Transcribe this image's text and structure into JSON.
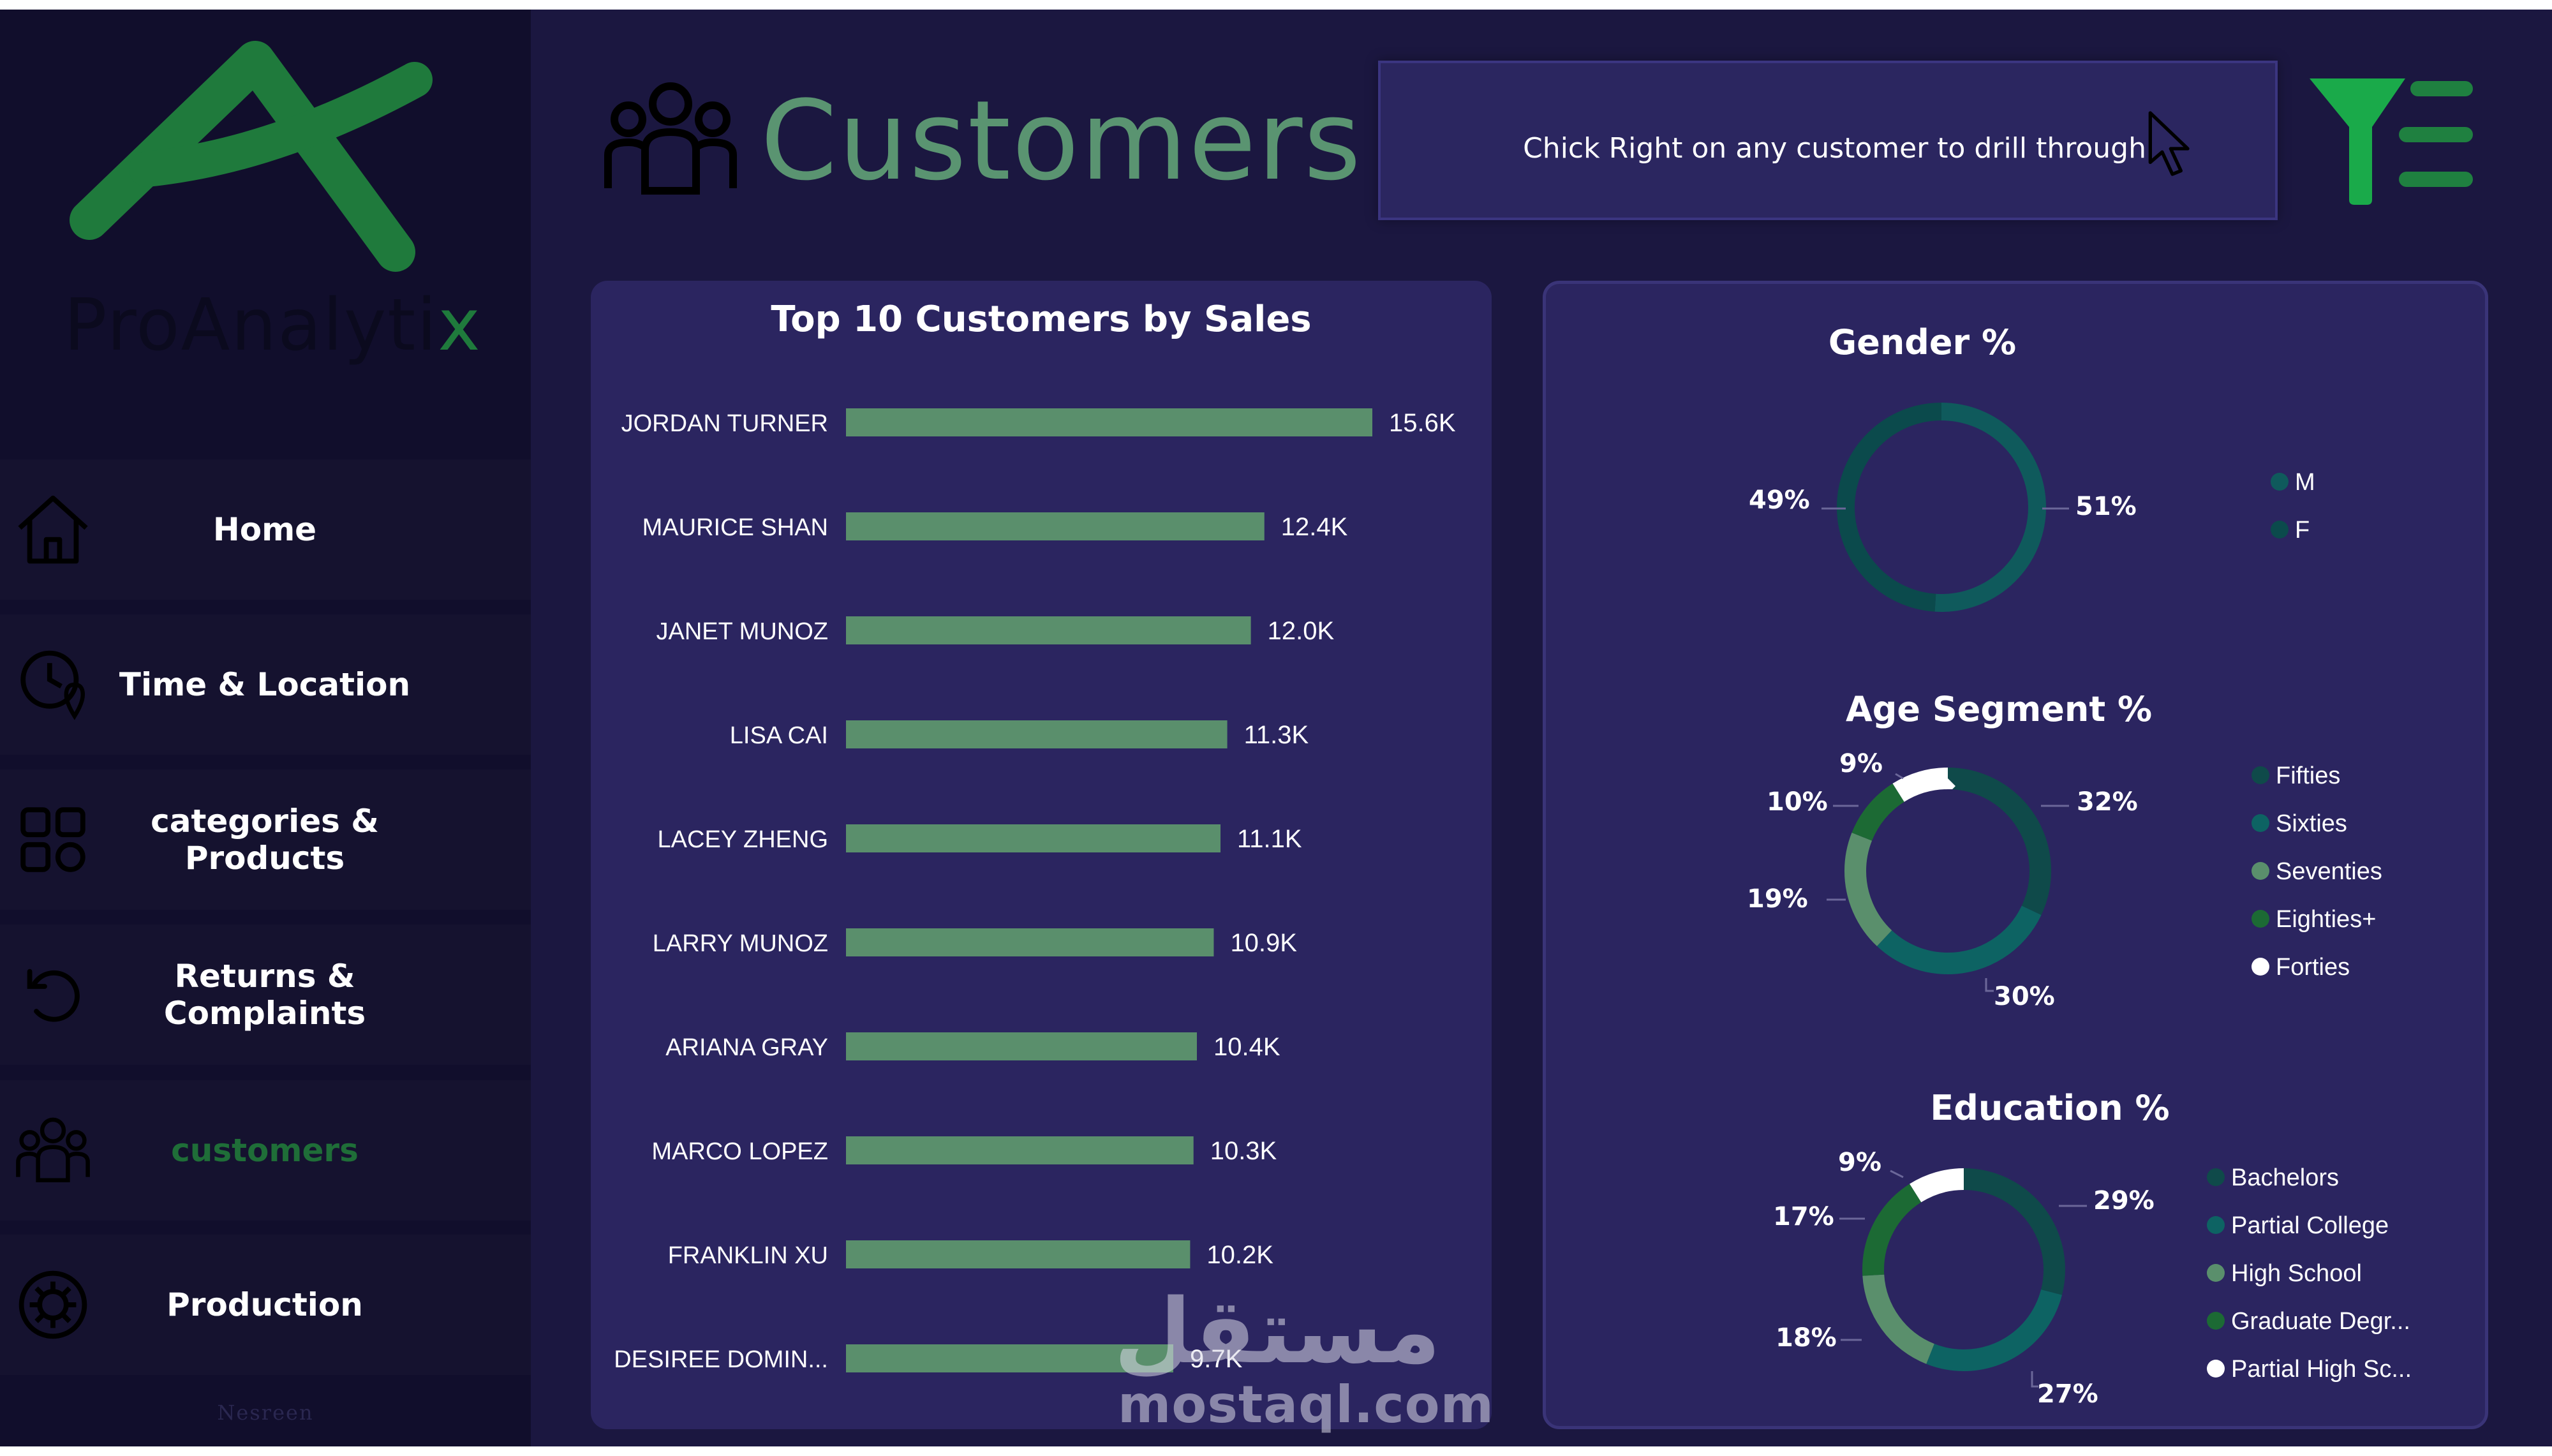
{
  "brand": {
    "logo_text_main": "ProAnalyti",
    "logo_text_accent": "x"
  },
  "sidebar": {
    "items": [
      {
        "label": "Home",
        "icon": "home-icon",
        "active": false
      },
      {
        "label": "Time & Location",
        "icon": "clock-location-icon",
        "active": false
      },
      {
        "label": "categories & Products",
        "icon": "grid-icon",
        "active": false
      },
      {
        "label": "Returns & Complaints",
        "icon": "return-icon",
        "active": false
      },
      {
        "label": "customers",
        "icon": "users-icon",
        "active": true
      },
      {
        "label": "Production",
        "icon": "gear-icon",
        "active": false
      }
    ],
    "footer": "Nesreen"
  },
  "header": {
    "title": "Customers",
    "hint": "Chick Right on any customer to drill through"
  },
  "colors": {
    "accent": "#5a9471",
    "bar": "#5a8f6c",
    "panel": "#2b2560",
    "background": "#1b1740",
    "sidebar": "#110e2c"
  },
  "chart_data": [
    {
      "type": "bar",
      "orientation": "horizontal",
      "title": "Top 10 Customers by Sales",
      "categories": [
        "JORDAN TURNER",
        "MAURICE SHAN",
        "JANET MUNOZ",
        "LISA CAI",
        "LACEY ZHENG",
        "LARRY MUNOZ",
        "ARIANA GRAY",
        "MARCO LOPEZ",
        "FRANKLIN XU",
        "DESIREE DOMIN..."
      ],
      "values": [
        15.6,
        12.4,
        12.0,
        11.3,
        11.1,
        10.9,
        10.4,
        10.3,
        10.2,
        9.7
      ],
      "labels": [
        "15.6K",
        "12.4K",
        "12.0K",
        "11.3K",
        "11.1K",
        "10.9K",
        "10.4K",
        "10.3K",
        "10.2K",
        "9.7K"
      ],
      "unit": "K",
      "color": "#5a8f6c"
    },
    {
      "type": "pie",
      "variant": "donut",
      "title": "Gender %",
      "slices": [
        {
          "name": "M",
          "value": 51,
          "label": "51%",
          "color": "#0f5a5c"
        },
        {
          "name": "F",
          "value": 49,
          "label": "49%",
          "color": "#0b4a4c"
        }
      ],
      "legend_position": "right"
    },
    {
      "type": "pie",
      "variant": "donut",
      "title": "Age Segment %",
      "slices": [
        {
          "name": "Fifties",
          "value": 32,
          "label": "32%",
          "color": "#0f4a4a"
        },
        {
          "name": "Sixties",
          "value": 30,
          "label": "30%",
          "color": "#0d6363"
        },
        {
          "name": "Seventies",
          "value": 19,
          "label": "19%",
          "color": "#5a8f6c"
        },
        {
          "name": "Eighties+",
          "value": 10,
          "label": "10%",
          "color": "#1c6a34"
        },
        {
          "name": "Forties",
          "value": 9,
          "label": "9%",
          "color": "#ffffff"
        }
      ],
      "legend_position": "right"
    },
    {
      "type": "pie",
      "variant": "donut",
      "title": "Education %",
      "slices": [
        {
          "name": "Bachelors",
          "value": 29,
          "label": "29%",
          "color": "#0f4a4a"
        },
        {
          "name": "Partial College",
          "value": 27,
          "label": "27%",
          "color": "#0d6363"
        },
        {
          "name": "High School",
          "value": 18,
          "label": "18%",
          "color": "#5a8f6c"
        },
        {
          "name": "Graduate Degr...",
          "value": 17,
          "label": "17%",
          "color": "#1c6a34"
        },
        {
          "name": "Partial High Sc...",
          "value": 9,
          "label": "9%",
          "color": "#ffffff"
        }
      ],
      "legend_position": "right"
    }
  ],
  "watermark": {
    "arabic": "مستقل",
    "text": "mostaql.com"
  }
}
